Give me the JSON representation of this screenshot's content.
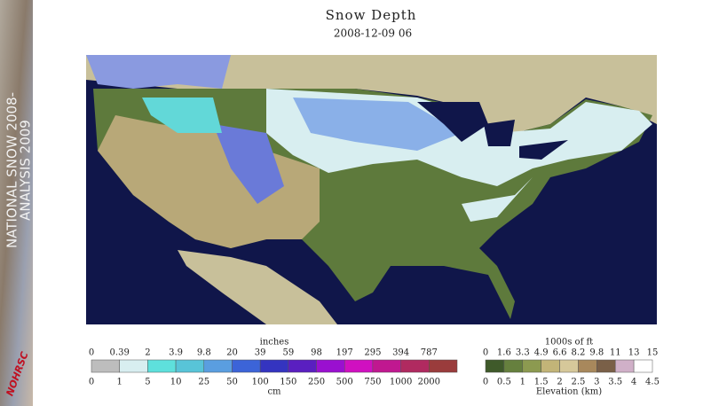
{
  "sidebar": {
    "line1": "NATIONAL SNOW 2008-",
    "line2": "ANALYSIS 2009",
    "logo": "NOHRSC"
  },
  "header": {
    "title": "Snow Depth",
    "date": "2008-12-09 06"
  },
  "snow_legend": {
    "unit_top": "inches",
    "unit_bottom": "cm",
    "top_labels": [
      "0",
      "0.39",
      "2",
      "3.9",
      "9.8",
      "20",
      "39",
      "59",
      "98",
      "197",
      "295",
      "394",
      "787"
    ],
    "bottom_labels": [
      "0",
      "1",
      "5",
      "10",
      "25",
      "50",
      "100",
      "150",
      "250",
      "500",
      "750",
      "1000",
      "2000"
    ],
    "colors": [
      "#bdbdbd",
      "#d8eef0",
      "#5ee0dc",
      "#58c4d8",
      "#5a9ee0",
      "#3c64d8",
      "#3434c0",
      "#5a1fc0",
      "#9a10d0",
      "#d010c0",
      "#c01890",
      "#b02a60",
      "#9a3c3c"
    ]
  },
  "elevation_legend": {
    "unit_top": "1000s of ft",
    "unit_bottom": "Elevation (km)",
    "top_labels": [
      "0",
      "1.6",
      "3.3",
      "4.9",
      "6.6",
      "8.2",
      "9.8",
      "11",
      "13",
      "15"
    ],
    "bottom_labels": [
      "0",
      "0.5",
      "1",
      "1.5",
      "2",
      "2.5",
      "3",
      "3.5",
      "4",
      "4.5"
    ],
    "colors": [
      "#3f5a2a",
      "#66803e",
      "#8c9a50",
      "#c2b478",
      "#d6c89a",
      "#a8885c",
      "#7a6048",
      "#d0b0c8",
      "#ffffff"
    ]
  }
}
